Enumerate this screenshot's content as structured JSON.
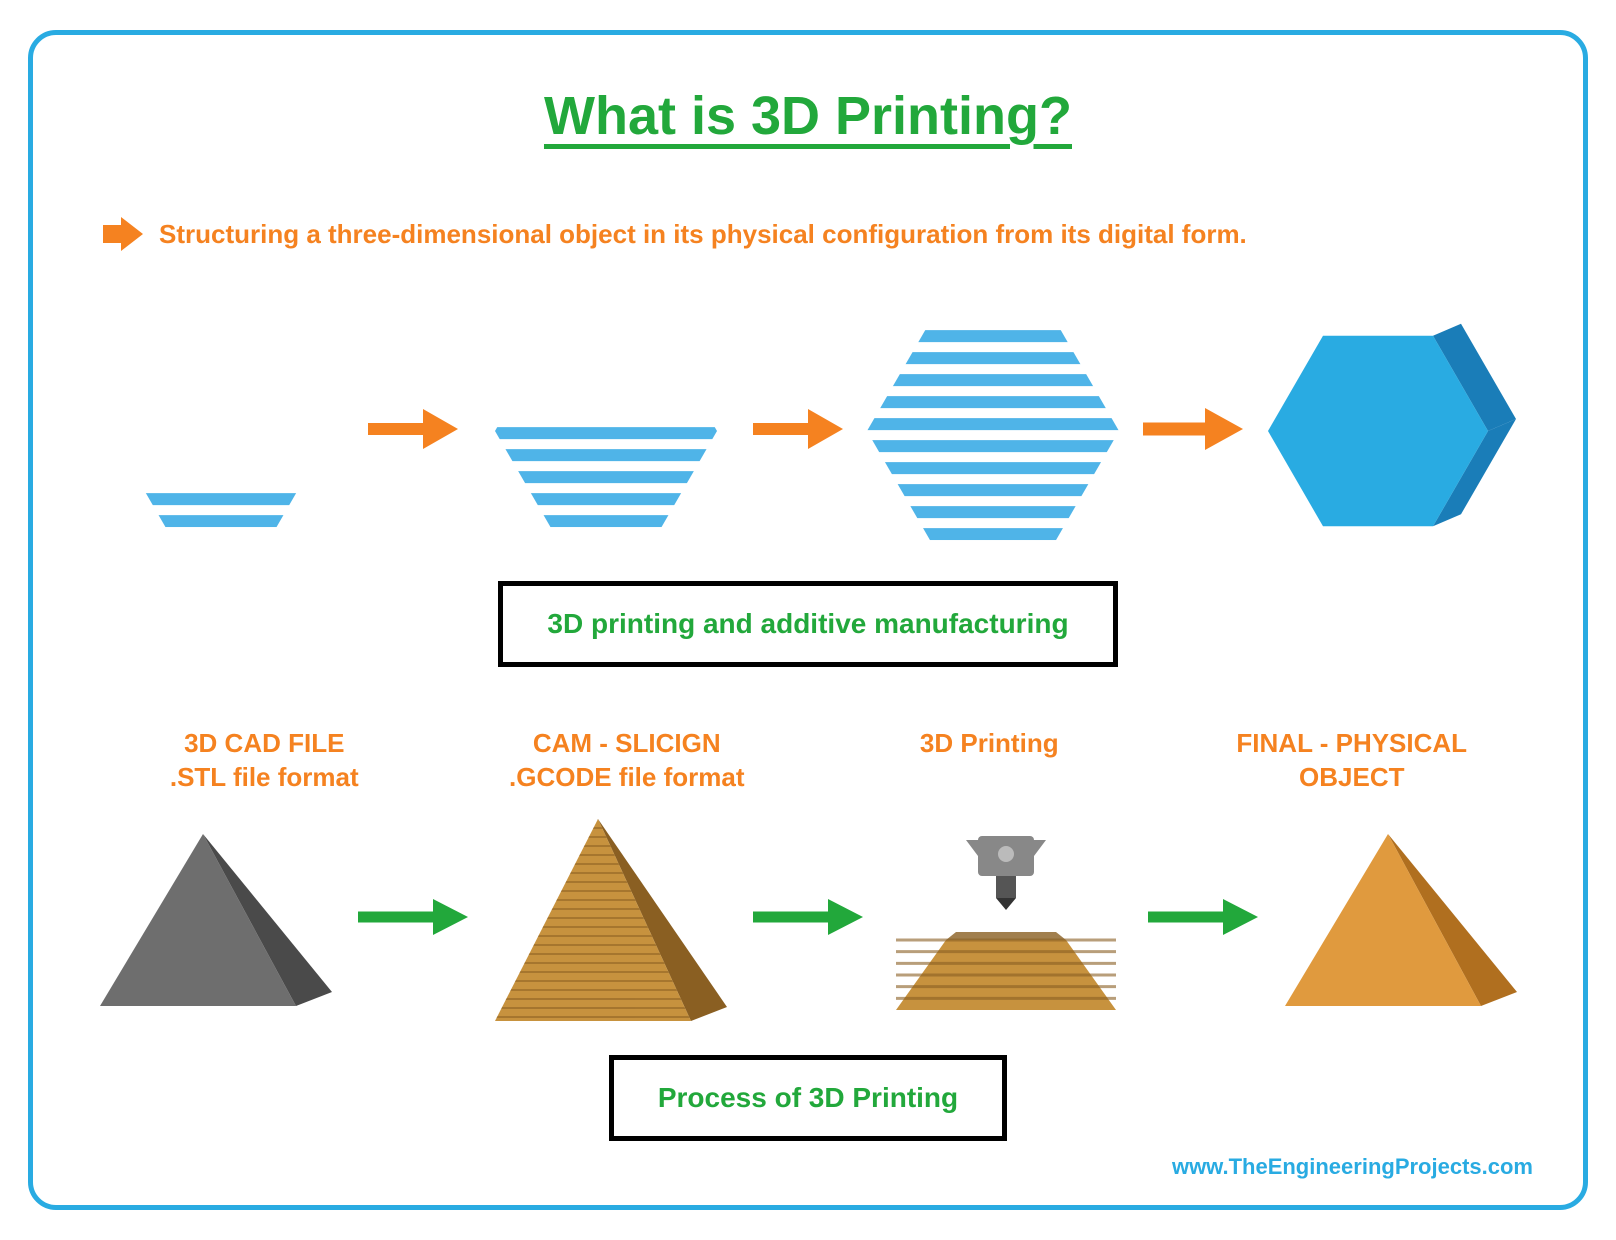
{
  "colors": {
    "frame_border": "#29abe2",
    "title": "#22a83b",
    "tagline": "#f58220",
    "arrow_orange": "#f58220",
    "arrow_green": "#22a83b",
    "hex_light": "#4fb4e8",
    "hex_stripe_gap": "#ffffff",
    "hex_solid": "#29abe2",
    "hex_solid_dark": "#1a7db8",
    "box_border": "#000000",
    "box_text": "#22a83b",
    "proc_label": "#f58220",
    "pyramid_gray": "#6e6e6e",
    "pyramid_gray_dark": "#4a4a4a",
    "pyramid_sand": "#c7923e",
    "pyramid_sand_dark": "#8a5f22",
    "pyramid_orange": "#e09a3e",
    "pyramid_orange_dark": "#b06f1f",
    "printer_body": "#888888",
    "footer": "#29abe2"
  },
  "title": "What is 3D Printing?",
  "tagline": "Structuring a three-dimensional object in its physical configuration from its digital form.",
  "box1": "3D printing and additive manufacturing",
  "box2": "Process of 3D Printing",
  "process": {
    "steps": [
      {
        "line1": "3D CAD FILE",
        "line2": ".STL file format"
      },
      {
        "line1": "CAM - SLICIGN",
        "line2": ".GCODE file format"
      },
      {
        "line1": "3D Printing",
        "line2": ""
      },
      {
        "line1": "FINAL - PHYSICAL",
        "line2": "OBJECT"
      }
    ]
  },
  "footer": "www.TheEngineeringProjects.com",
  "hex_stages": {
    "stripe_width": 12,
    "stripe_gap": 10
  }
}
